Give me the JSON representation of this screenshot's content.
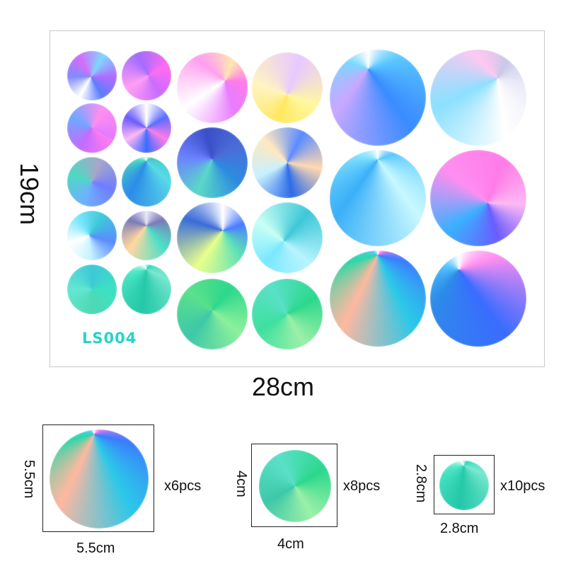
{
  "sheet": {
    "code_label": "LS004",
    "width_label": "28cm",
    "height_label": "19cm"
  },
  "sizes": [
    {
      "width_label": "5.5cm",
      "height_label": "5.5cm",
      "qty_label": "x6pcs"
    },
    {
      "width_label": "4cm",
      "height_label": "4cm",
      "qty_label": "x8pcs"
    },
    {
      "width_label": "2.8cm",
      "height_label": "2.8cm",
      "qty_label": "x10pcs"
    }
  ],
  "colors": {
    "border": "#c8c8c8",
    "code_text": "#27d3c9"
  }
}
